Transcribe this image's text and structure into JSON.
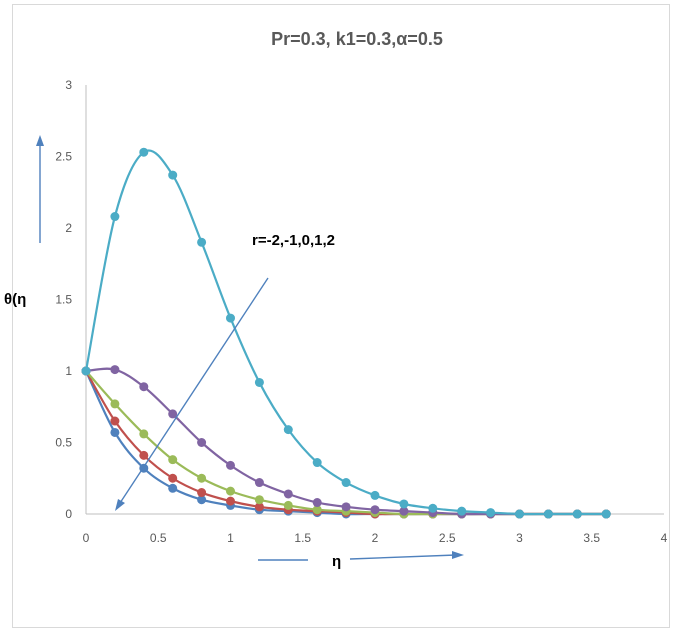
{
  "chart_data": {
    "type": "line",
    "title": "Pr=0.3, k1=0.3,α=0.5",
    "xlabel": "η",
    "ylabel": "θ(η",
    "annotation": "r=-2,-1,0,1,2",
    "xlim": [
      0,
      4
    ],
    "ylim": [
      0,
      3
    ],
    "xticks": [
      "0",
      "0.5",
      "1",
      "1.5",
      "2",
      "2.5",
      "3",
      "3.5",
      "4"
    ],
    "yticks": [
      "0",
      "0.5",
      "1",
      "1.5",
      "2",
      "2.5",
      "3"
    ],
    "grid": false,
    "legend": "none",
    "x": [
      0,
      0.2,
      0.4,
      0.6,
      0.8,
      1.0,
      1.2,
      1.4,
      1.6,
      1.8,
      2.0,
      2.2,
      2.4,
      2.6,
      2.8,
      3.0,
      3.2,
      3.4,
      3.6
    ],
    "series": [
      {
        "color": "#4F81BD",
        "values": [
          1.0,
          0.57,
          0.32,
          0.18,
          0.1,
          0.06,
          0.03,
          0.02,
          0.01,
          0.0,
          0.0,
          0.0,
          0.0,
          0.0,
          0.0,
          0.0,
          0.0,
          0.0,
          0.0
        ]
      },
      {
        "color": "#C0504D",
        "values": [
          1.0,
          0.65,
          0.41,
          0.25,
          0.15,
          0.09,
          0.05,
          0.03,
          0.02,
          0.01,
          0.0,
          0.0,
          0.0,
          0.0,
          0.0,
          0.0,
          0.0,
          0.0,
          0.0
        ]
      },
      {
        "color": "#9BBB59",
        "values": [
          1.0,
          0.77,
          0.56,
          0.38,
          0.25,
          0.16,
          0.1,
          0.06,
          0.03,
          0.02,
          0.01,
          0.0,
          0.0,
          0.0,
          0.0,
          0.0,
          0.0,
          0.0,
          0.0
        ]
      },
      {
        "color": "#8064A2",
        "values": [
          1.0,
          1.01,
          0.89,
          0.7,
          0.5,
          0.34,
          0.22,
          0.14,
          0.08,
          0.05,
          0.03,
          0.02,
          0.01,
          0.0,
          0.0,
          0.0,
          0.0,
          0.0,
          0.0
        ]
      },
      {
        "color": "#4BACC6",
        "values": [
          1.0,
          2.08,
          2.53,
          2.37,
          1.9,
          1.37,
          0.92,
          0.59,
          0.36,
          0.22,
          0.13,
          0.07,
          0.04,
          0.02,
          0.01,
          0.0,
          0.0,
          0.0,
          0.0
        ]
      }
    ]
  }
}
